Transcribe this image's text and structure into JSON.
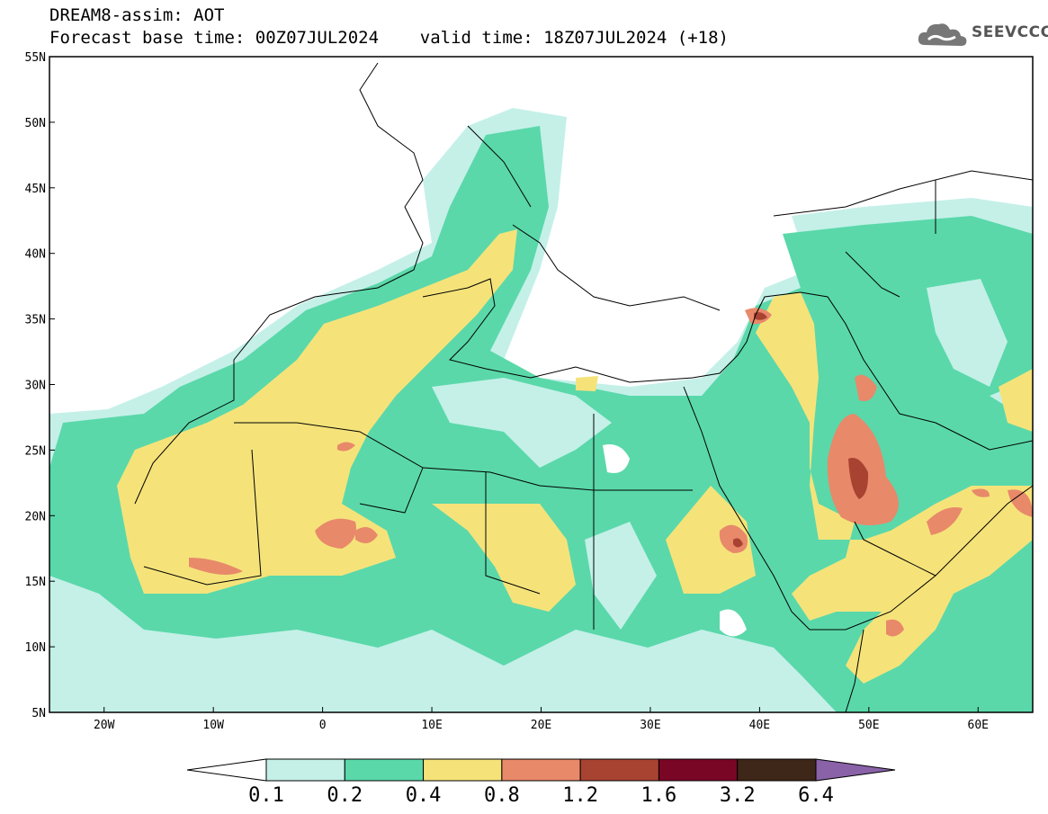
{
  "header": {
    "line1": "DREAM8-assim: AOT",
    "line2": "Forecast base time: 00Z07JUL2024    valid time: 18Z07JUL2024 (+18)"
  },
  "logo": {
    "text": "SEEVCCC",
    "icon": "cloud-icon"
  },
  "map": {
    "lon_range": [
      -25,
      65
    ],
    "lat_range": [
      5,
      55
    ],
    "x_ticks": [
      {
        "lon": -20,
        "label": "20W"
      },
      {
        "lon": -10,
        "label": "10W"
      },
      {
        "lon": 0,
        "label": "0"
      },
      {
        "lon": 10,
        "label": "10E"
      },
      {
        "lon": 20,
        "label": "20E"
      },
      {
        "lon": 30,
        "label": "30E"
      },
      {
        "lon": 40,
        "label": "40E"
      },
      {
        "lon": 50,
        "label": "50E"
      },
      {
        "lon": 60,
        "label": "60E"
      }
    ],
    "y_ticks": [
      {
        "lat": 55,
        "label": "55N"
      },
      {
        "lat": 50,
        "label": "50N"
      },
      {
        "lat": 45,
        "label": "45N"
      },
      {
        "lat": 40,
        "label": "40N"
      },
      {
        "lat": 35,
        "label": "35N"
      },
      {
        "lat": 30,
        "label": "30N"
      },
      {
        "lat": 25,
        "label": "25N"
      },
      {
        "lat": 20,
        "label": "20N"
      },
      {
        "lat": 15,
        "label": "15N"
      },
      {
        "lat": 10,
        "label": "10N"
      },
      {
        "lat": 5,
        "label": "5N"
      }
    ]
  },
  "colorbar": {
    "colors": [
      "#ffffff",
      "#c4f0e8",
      "#5ad8aa",
      "#f5e37a",
      "#e8896a",
      "#a84332",
      "#7a0626",
      "#3e2618",
      "#8a62a8"
    ],
    "labels": [
      "0.1",
      "0.2",
      "0.4",
      "0.8",
      "1.2",
      "1.6",
      "3.2",
      "6.4"
    ]
  }
}
